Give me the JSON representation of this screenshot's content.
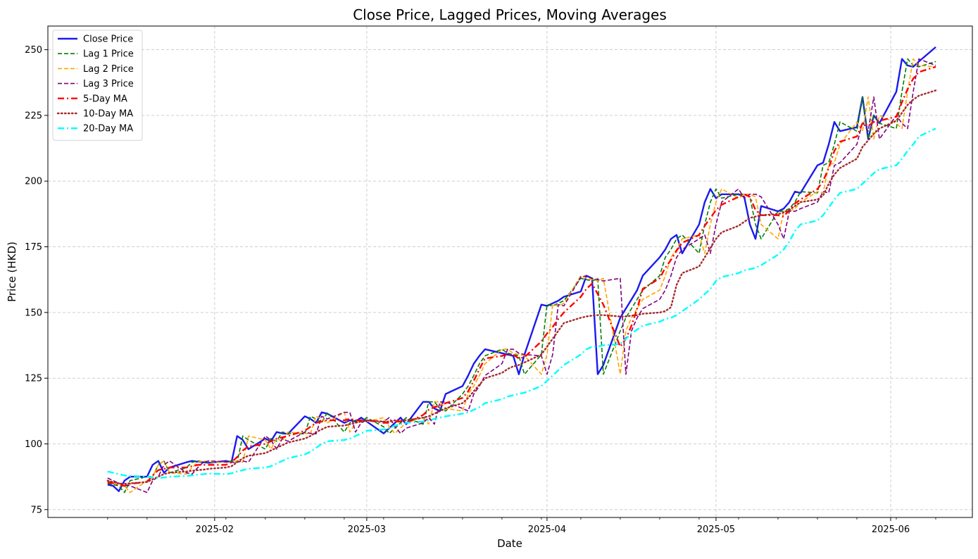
{
  "chart_data": {
    "type": "line",
    "title": "Close Price, Lagged Prices, Moving Averages",
    "xlabel": "Date",
    "ylabel": "Price (HKD)",
    "ylim": [
      72,
      259
    ],
    "yticks": [
      75,
      100,
      125,
      150,
      175,
      200,
      225,
      250
    ],
    "ytick_labels": [
      "75",
      "100",
      "125",
      "150",
      "175",
      "200",
      "225",
      "250"
    ],
    "xlim_days": [
      -10.6,
      153.5
    ],
    "x_unit": "days since 2025-01-13",
    "xticks_days": [
      19,
      46,
      78,
      108,
      139
    ],
    "xtick_labels": [
      "2025-02",
      "2025-03",
      "2025-04",
      "2025-05",
      "2025-06"
    ],
    "grid": true,
    "legend_position": "top-left",
    "x": [
      0,
      1,
      2,
      3,
      4,
      7,
      8,
      9,
      10,
      11,
      14,
      15,
      16,
      17,
      18,
      21,
      22,
      23,
      24,
      25,
      28,
      29,
      30,
      31,
      32,
      35,
      36,
      37,
      38,
      39,
      42,
      43,
      44,
      45,
      46,
      49,
      50,
      51,
      52,
      53,
      56,
      57,
      58,
      59,
      60,
      63,
      64,
      65,
      66,
      67,
      70,
      71,
      72,
      73,
      74,
      77,
      78,
      79,
      80,
      81,
      84,
      85,
      86,
      87,
      88,
      91,
      92,
      93,
      94,
      95,
      98,
      99,
      100,
      101,
      102,
      105,
      106,
      107,
      108,
      109,
      112,
      113,
      114,
      115,
      116,
      119,
      120,
      121,
      122,
      123,
      126,
      127,
      128,
      129,
      130,
      133,
      134,
      135,
      136,
      137,
      140,
      141,
      142,
      143,
      144,
      147
    ],
    "series": [
      {
        "name": "Close Price",
        "color": "#1a1aee",
        "style": "solid",
        "width": 2.4,
        "values": [
          84.5,
          84.0,
          82.0,
          86.0,
          87.5,
          87.5,
          92.0,
          93.5,
          89.0,
          91.0,
          93.0,
          93.5,
          93.2,
          93.0,
          92.8,
          93.5,
          93.0,
          103.0,
          101.5,
          98.0,
          102.0,
          101.0,
          104.5,
          104.0,
          103.8,
          110.5,
          109.5,
          108.0,
          112.0,
          111.5,
          108.0,
          109.0,
          108.5,
          110.0,
          108.5,
          104.0,
          106.0,
          108.0,
          110.0,
          107.5,
          116.0,
          116.0,
          113.5,
          112.5,
          119.0,
          122.0,
          126.0,
          130.5,
          133.5,
          136.0,
          134.5,
          134.0,
          133.5,
          126.5,
          134.0,
          153.0,
          152.5,
          153.5,
          154.5,
          156.0,
          158.0,
          164.0,
          163.0,
          126.5,
          130.0,
          148.0,
          151.5,
          155.0,
          158.5,
          164.0,
          171.0,
          174.0,
          178.0,
          179.5,
          172.5,
          183.5,
          192.0,
          197.0,
          193.5,
          195.0,
          195.0,
          194.0,
          183.5,
          178.0,
          190.5,
          188.5,
          189.5,
          192.0,
          196.0,
          195.5,
          206.0,
          207.0,
          214.0,
          222.5,
          219.0,
          220.5,
          232.0,
          216.0,
          225.0,
          222.0,
          234.0,
          246.5,
          244.0,
          243.5,
          245.5,
          251.0
        ]
      },
      {
        "name": "Lag 1 Price",
        "color": "#008000",
        "style": "dashed",
        "width": 1.6,
        "values": [
          85.0,
          84.5,
          84.0,
          81.5,
          86.0,
          87.5,
          87.5,
          92.0,
          93.5,
          89.0,
          91.0,
          93.0,
          93.5,
          93.2,
          93.0,
          93.0,
          93.5,
          93.0,
          103.0,
          101.5,
          98.0,
          102.0,
          101.0,
          104.5,
          104.0,
          103.8,
          110.5,
          109.5,
          108.0,
          112.0,
          104.5,
          108.0,
          109.0,
          108.5,
          110.0,
          106.5,
          104.0,
          106.0,
          108.0,
          110.0,
          107.5,
          116.0,
          116.0,
          113.5,
          112.5,
          119.0,
          122.0,
          126.0,
          130.5,
          133.5,
          136.0,
          134.5,
          134.0,
          133.5,
          126.5,
          134.0,
          153.0,
          152.5,
          153.5,
          154.5,
          163.0,
          162.5,
          162.0,
          163.0,
          126.5,
          143.0,
          148.0,
          151.5,
          155.0,
          158.5,
          164.0,
          171.0,
          174.0,
          178.0,
          179.5,
          172.5,
          183.5,
          192.0,
          197.0,
          193.5,
          195.0,
          195.0,
          194.0,
          183.5,
          178.0,
          188.5,
          188.5,
          189.5,
          192.0,
          196.0,
          195.5,
          206.0,
          207.0,
          214.0,
          222.5,
          219.0,
          232.0,
          216.0,
          225.0,
          222.0,
          220.0,
          234.0,
          246.5,
          244.0,
          243.5,
          245.5
        ]
      },
      {
        "name": "Lag 2 Price",
        "color": "#ffa500",
        "style": "dashed",
        "width": 1.6,
        "values": [
          86.0,
          85.0,
          84.5,
          84.0,
          81.5,
          86.0,
          87.5,
          92.0,
          93.5,
          89.0,
          88.5,
          91.0,
          93.0,
          93.5,
          93.2,
          93.0,
          93.0,
          93.5,
          93.0,
          103.0,
          101.5,
          98.0,
          102.0,
          101.0,
          104.5,
          104.0,
          103.8,
          110.5,
          109.5,
          108.0,
          112.0,
          104.5,
          108.0,
          109.0,
          108.5,
          110.0,
          106.5,
          104.0,
          106.0,
          108.0,
          110.0,
          107.5,
          116.0,
          116.0,
          113.5,
          112.5,
          119.0,
          122.0,
          126.0,
          130.5,
          136.0,
          136.0,
          134.5,
          134.0,
          133.5,
          126.5,
          134.0,
          153.0,
          152.5,
          153.5,
          164.0,
          163.0,
          162.5,
          162.0,
          163.0,
          126.5,
          143.0,
          148.0,
          151.5,
          155.0,
          158.5,
          164.0,
          171.0,
          174.0,
          178.0,
          179.5,
          172.5,
          183.5,
          192.0,
          197.0,
          193.5,
          195.0,
          195.0,
          194.0,
          183.5,
          178.0,
          188.5,
          188.5,
          189.5,
          192.0,
          196.0,
          195.5,
          206.0,
          207.0,
          214.0,
          222.5,
          219.0,
          232.0,
          216.0,
          225.0,
          222.0,
          220.0,
          234.0,
          246.5,
          244.0,
          243.5
        ]
      },
      {
        "name": "Lag 3 Price",
        "color": "#800080",
        "style": "dashed",
        "width": 1.6,
        "values": [
          87.0,
          86.0,
          85.0,
          84.5,
          84.0,
          81.5,
          86.0,
          87.5,
          92.0,
          93.5,
          89.0,
          88.5,
          91.0,
          93.0,
          93.5,
          93.2,
          93.0,
          93.0,
          93.5,
          93.0,
          103.0,
          101.5,
          98.0,
          102.0,
          101.0,
          104.5,
          104.0,
          103.8,
          110.5,
          109.5,
          112.0,
          112.0,
          104.5,
          108.0,
          109.0,
          108.5,
          110.0,
          106.5,
          104.0,
          106.0,
          108.0,
          110.0,
          107.5,
          116.0,
          116.0,
          113.5,
          112.5,
          119.0,
          122.0,
          126.0,
          130.5,
          136.0,
          136.0,
          134.5,
          134.0,
          133.5,
          126.5,
          134.0,
          153.0,
          152.5,
          163.5,
          164.0,
          163.0,
          162.5,
          162.0,
          163.0,
          126.5,
          143.0,
          148.0,
          151.5,
          155.0,
          158.5,
          164.0,
          171.0,
          174.0,
          178.0,
          179.5,
          172.5,
          183.5,
          192.0,
          197.0,
          193.5,
          195.0,
          195.0,
          194.0,
          183.5,
          178.0,
          188.5,
          188.5,
          189.5,
          192.0,
          196.0,
          195.5,
          206.0,
          207.0,
          214.0,
          222.5,
          219.0,
          232.0,
          216.0,
          225.0,
          222.0,
          220.0,
          234.0,
          246.5,
          244.0
        ]
      },
      {
        "name": "5-Day MA",
        "color": "#ff0000",
        "style": "dashdot",
        "width": 2.4,
        "values": [
          85.5,
          85.0,
          84.5,
          84.0,
          84.8,
          85.5,
          88.0,
          90.0,
          90.5,
          91.0,
          91.0,
          91.5,
          92.0,
          92.0,
          92.0,
          92.0,
          93.0,
          95.0,
          97.5,
          99.0,
          100.0,
          101.0,
          102.0,
          102.5,
          103.0,
          105.0,
          106.5,
          108.0,
          108.5,
          109.0,
          109.0,
          109.5,
          109.0,
          109.0,
          109.0,
          108.0,
          108.0,
          108.5,
          108.5,
          108.0,
          111.0,
          113.0,
          114.0,
          114.5,
          115.5,
          117.5,
          120.0,
          124.0,
          128.5,
          132.5,
          133.5,
          134.0,
          134.0,
          132.5,
          133.0,
          139.0,
          142.0,
          144.5,
          147.5,
          150.0,
          156.0,
          159.0,
          161.0,
          157.0,
          153.0,
          137.0,
          140.0,
          145.0,
          151.5,
          159.0,
          163.0,
          167.0,
          170.0,
          173.5,
          176.5,
          179.5,
          183.0,
          186.0,
          189.0,
          191.0,
          194.0,
          195.0,
          194.0,
          189.0,
          187.0,
          187.0,
          186.5,
          189.0,
          191.5,
          193.0,
          197.0,
          200.0,
          205.0,
          211.5,
          215.0,
          217.0,
          222.0,
          221.0,
          222.5,
          223.0,
          224.5,
          230.0,
          235.0,
          239.0,
          241.5,
          243.5
        ]
      },
      {
        "name": "10-Day MA",
        "color": "#a52a2a",
        "style": "dotted",
        "width": 2.4,
        "values": [
          86.0,
          85.5,
          85.0,
          84.8,
          85.0,
          85.5,
          86.5,
          87.5,
          88.5,
          89.0,
          89.5,
          89.8,
          90.0,
          90.2,
          90.5,
          91.0,
          91.5,
          93.0,
          94.5,
          95.5,
          96.5,
          97.5,
          98.5,
          99.5,
          100.5,
          102.0,
          103.0,
          104.5,
          105.5,
          106.5,
          107.0,
          107.5,
          108.0,
          108.5,
          109.0,
          108.5,
          108.5,
          109.0,
          109.0,
          109.0,
          110.0,
          110.5,
          111.5,
          112.5,
          113.5,
          115.5,
          117.5,
          120.0,
          122.5,
          125.0,
          127.0,
          128.5,
          129.5,
          130.0,
          131.0,
          134.0,
          137.0,
          140.0,
          143.0,
          146.0,
          148.0,
          148.5,
          148.8,
          149.0,
          149.0,
          148.5,
          148.5,
          148.8,
          149.0,
          149.5,
          150.0,
          150.5,
          152.0,
          160.5,
          165.0,
          167.5,
          171.0,
          174.5,
          178.0,
          180.5,
          183.0,
          184.5,
          186.0,
          186.5,
          187.0,
          187.5,
          188.0,
          189.0,
          190.5,
          192.0,
          193.0,
          194.5,
          199.0,
          202.5,
          205.0,
          208.5,
          213.0,
          215.5,
          218.0,
          220.0,
          223.0,
          226.0,
          229.0,
          231.0,
          232.5,
          234.5
        ]
      },
      {
        "name": "20-Day MA",
        "color": "#00ffff",
        "style": "dashdot",
        "width": 2.4,
        "values": [
          89.5,
          89.0,
          88.5,
          88.0,
          87.8,
          87.5,
          87.2,
          87.0,
          87.2,
          87.5,
          87.8,
          88.0,
          88.3,
          88.5,
          88.7,
          88.5,
          88.8,
          89.5,
          90.0,
          90.5,
          91.0,
          91.5,
          92.5,
          93.5,
          94.5,
          96.0,
          97.0,
          98.5,
          100.0,
          101.0,
          101.5,
          102.0,
          103.0,
          104.0,
          105.0,
          105.5,
          106.0,
          107.0,
          107.5,
          108.0,
          108.5,
          109.0,
          109.5,
          110.0,
          110.5,
          111.5,
          112.0,
          113.0,
          114.0,
          115.5,
          117.0,
          118.0,
          118.5,
          119.0,
          119.5,
          122.0,
          124.0,
          126.0,
          128.0,
          130.0,
          134.0,
          136.0,
          137.0,
          137.0,
          137.5,
          138.0,
          140.0,
          142.0,
          143.5,
          145.0,
          146.5,
          147.5,
          148.0,
          149.0,
          150.5,
          155.0,
          157.0,
          159.0,
          162.0,
          163.5,
          165.0,
          166.0,
          166.5,
          167.0,
          168.0,
          172.0,
          174.0,
          177.0,
          181.0,
          183.5,
          185.0,
          187.0,
          190.0,
          193.0,
          195.5,
          197.0,
          199.0,
          201.0,
          203.0,
          204.5,
          206.0,
          208.5,
          211.5,
          214.0,
          217.0,
          220.0
        ]
      }
    ]
  }
}
